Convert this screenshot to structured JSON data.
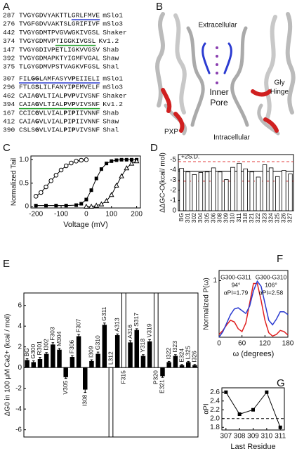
{
  "panel_labels": [
    "A",
    "B",
    "C",
    "D",
    "E",
    "F",
    "G"
  ],
  "alignment": {
    "blocks": [
      {
        "rows": [
          {
            "start": 287,
            "name": "mSlo1",
            "segments": [
              {
                "text": "TVGYGD",
                "color": "#2b3bd1"
              },
              {
                "text": "VYAKTTL"
              },
              {
                "text": "GRLFMVE",
                "underline": "#2b3bd1"
              }
            ]
          },
          {
            "start": 276,
            "name": "mSlo3",
            "segments": [
              {
                "text": "TVGFGD",
                "color": "#2b3bd1"
              },
              {
                "text": "VVAKTSLGRIFIVF"
              }
            ]
          },
          {
            "start": 442,
            "name": "Shaker",
            "segments": [
              {
                "text": "TVGYGD",
                "color": "#2b3bd1"
              },
              {
                "text": "MTPVGVWGKIVGSL"
              }
            ]
          },
          {
            "start": 374,
            "name": "Kv1.2",
            "segments": [
              {
                "text": "TVGYGD",
                "color": "#2b3bd1"
              },
              {
                "text": "MVP"
              },
              {
                "text": "TIGGKIVGSL",
                "underline": "#22a02a"
              }
            ]
          },
          {
            "start": 147,
            "name": "Shab",
            "segments": [
              {
                "text": "TVGYGD",
                "color": "#2b3bd1"
              },
              {
                "text": "IVPETLIGKVVGSV"
              }
            ]
          },
          {
            "start": 392,
            "name": "Shaw",
            "segments": [
              {
                "text": "TVGYGD",
                "color": "#2b3bd1"
              },
              {
                "text": "MAPKTYIGMFVGAL"
              }
            ]
          },
          {
            "start": 375,
            "name": "Shal",
            "segments": [
              {
                "text": "TLGYGD",
                "color": "#2b3bd1"
              },
              {
                "text": "MVPSTVAGKVFGSL"
              }
            ]
          }
        ]
      },
      {
        "rows": [
          {
            "start": 307,
            "name": "mSlo1",
            "underline": "#2b3bd1",
            "segments": [
              {
                "text": "FIL"
              },
              {
                "text": "GG",
                "color": "#e02020",
                "weight": "bold"
              },
              {
                "text": "LAMFASYV"
              },
              {
                "text": "P",
                "color": "#e02020",
                "weight": "bold"
              },
              {
                "text": "EIIELI"
              }
            ]
          },
          {
            "start": 296,
            "name": "mSlo3",
            "segments": [
              {
                "text": "FTLG"
              },
              {
                "text": "S",
                "color": "#e02020",
                "weight": "bold"
              },
              {
                "text": "LILFANYI"
              },
              {
                "text": "P",
                "color": "#e02020",
                "weight": "bold"
              },
              {
                "text": "EMVELF"
              }
            ]
          },
          {
            "start": 462,
            "name": "Shaker",
            "segments": [
              {
                "text": "CAIA"
              },
              {
                "text": "G",
                "color": "#e02020",
                "weight": "bold"
              },
              {
                "text": "VLTIAL"
              },
              {
                "text": "P",
                "color": "#e02020",
                "weight": "bold"
              },
              {
                "text": "V"
              },
              {
                "text": "P",
                "color": "#e02020",
                "weight": "bold"
              },
              {
                "text": "VIVSNF"
              }
            ]
          },
          {
            "start": 394,
            "name": "Kv1.2",
            "underline": "#22a02a",
            "segments": [
              {
                "text": "CAIA"
              },
              {
                "text": "G",
                "color": "#e02020",
                "weight": "bold"
              },
              {
                "text": "VLTIAL"
              },
              {
                "text": "P",
                "color": "#e02020",
                "weight": "bold"
              },
              {
                "text": "V"
              },
              {
                "text": "P",
                "color": "#e02020",
                "weight": "bold"
              },
              {
                "text": "VIVSNF"
              }
            ]
          },
          {
            "start": 167,
            "name": "Shab",
            "segments": [
              {
                "text": "CCIC"
              },
              {
                "text": "G",
                "color": "#e02020",
                "weight": "bold"
              },
              {
                "text": "VLVIAL"
              },
              {
                "text": "P",
                "color": "#e02020",
                "weight": "bold"
              },
              {
                "text": "I"
              },
              {
                "text": "P",
                "color": "#e02020",
                "weight": "bold"
              },
              {
                "text": "IIVNNF"
              }
            ]
          },
          {
            "start": 412,
            "name": "Shaw",
            "segments": [
              {
                "text": "CAIA"
              },
              {
                "text": "G",
                "color": "#e02020",
                "weight": "bold"
              },
              {
                "text": "VLVIAL"
              },
              {
                "text": "P",
                "color": "#e02020",
                "weight": "bold"
              },
              {
                "text": "I"
              },
              {
                "text": "P",
                "color": "#e02020",
                "weight": "bold"
              },
              {
                "text": "IIVNNF"
              }
            ]
          },
          {
            "start": 390,
            "name": "Shal",
            "segments": [
              {
                "text": "CSLS"
              },
              {
                "text": "G",
                "color": "#e02020",
                "weight": "bold"
              },
              {
                "text": "VLVIAL"
              },
              {
                "text": "P",
                "color": "#e02020",
                "weight": "bold"
              },
              {
                "text": "I"
              },
              {
                "text": "P",
                "color": "#e02020",
                "weight": "bold"
              },
              {
                "text": "VIVSNF"
              }
            ]
          }
        ]
      }
    ]
  },
  "structure": {
    "labels": [
      {
        "text": "Extracellular",
        "color": "#111"
      },
      {
        "text": "Inner",
        "color": "#111"
      },
      {
        "text": "Pore",
        "color": "#111"
      },
      {
        "text": "Gly",
        "color": "#e02020"
      },
      {
        "text": "Hinge",
        "color": "#e02020"
      },
      {
        "text": "PXP",
        "color": "#e02020"
      },
      {
        "text": "Intracellular",
        "color": "#111"
      }
    ]
  },
  "chart_data": [
    {
      "type": "scatter",
      "ylabel": "Normalized Tail",
      "xlabel": "Voltage (mV)",
      "xlim": [
        -220,
        215
      ],
      "xticks": [
        -200,
        -100,
        0,
        100,
        200
      ],
      "ylim": [
        -0.03,
        1.08
      ],
      "yticks": [
        0,
        0.5,
        {
          "value": 1,
          "label": "1.0"
        }
      ],
      "series": [
        {
          "marker": "circle-open",
          "color": "#000",
          "x": [
            -200,
            -180,
            -160,
            -140,
            -120,
            -100,
            -80,
            -60,
            -40,
            -20,
            0
          ],
          "values": [
            0.22,
            0.3,
            0.42,
            0.55,
            0.67,
            0.78,
            0.87,
            0.93,
            0.97,
            0.99,
            1.0
          ]
        },
        {
          "marker": "square",
          "color": "#000",
          "x": [
            -200,
            -160,
            -120,
            -80,
            -40,
            -20,
            0,
            20,
            40,
            60,
            80,
            100,
            120,
            140,
            160,
            180,
            200
          ],
          "values": [
            0.02,
            0.02,
            0.02,
            0.02,
            0.03,
            0.06,
            0.15,
            0.35,
            0.6,
            0.8,
            0.92,
            0.97,
            0.99,
            1.0,
            1.0,
            1.0,
            1.0
          ]
        },
        {
          "marker": "triangle-open",
          "color": "#000",
          "x": [
            0,
            20,
            40,
            60,
            80,
            100,
            120,
            140,
            160,
            180,
            200
          ],
          "values": [
            0.0,
            0.0,
            0.02,
            0.05,
            0.12,
            0.25,
            0.45,
            0.65,
            0.82,
            0.92,
            0.97
          ]
        }
      ]
    },
    {
      "type": "bar",
      "ylabel": "ΔΔGC-O(kcal/ mol)",
      "bar_fill": "#fff",
      "categories": [
        "BG",
        "301",
        "302",
        "304",
        "305",
        "306",
        "308",
        "309",
        "310",
        "311",
        "318",
        "321",
        "322",
        "323",
        "324",
        "325",
        "326",
        "327"
      ],
      "values": [
        -4.15,
        -3.8,
        -3.55,
        -3.75,
        -3.8,
        -4.2,
        -3.8,
        -3.05,
        -4.25,
        -4.65,
        -4.1,
        -3.8,
        -3.3,
        -4.5,
        -4.2,
        -3.35,
        -3.95,
        -3.6
      ],
      "ylim": [
        0,
        -5.5
      ],
      "yticks": [
        0,
        -1,
        -2,
        -3,
        -4,
        -5
      ],
      "ref_lines": [
        {
          "value": -3.85,
          "color": "#000",
          "dash": false
        },
        {
          "value": -4.8,
          "color": "#e03030",
          "dash": true,
          "label": "+2S.D."
        },
        {
          "value": -2.9,
          "color": "#e03030",
          "dash": true
        }
      ]
    },
    {
      "type": "bar",
      "ylabel": "ΔG0 in 100 μM Ca2+ (kcal / mol)",
      "bar_fill": "#000",
      "categories": [
        "BG",
        "G300",
        "R301",
        "I302",
        "F303",
        "M304",
        "V305",
        "F306",
        "F307",
        "I308",
        "I309",
        "G310",
        "G311",
        "L312",
        "A313",
        "F315",
        "A316",
        "S317",
        "Y318",
        "V319",
        "P320",
        "E321",
        "I322",
        "I323",
        "E324",
        "L325",
        "I326"
      ],
      "values": [
        0.7,
        0.5,
        0.8,
        1.3,
        2.2,
        1.7,
        -0.9,
        1.0,
        3.0,
        -2.1,
        0.6,
        1.3,
        4.1,
        null,
        3.1,
        null,
        2.4,
        3.6,
        1.1,
        2.5,
        null,
        -0.8,
        0.5,
        1.1,
        0.2,
        0.5,
        0.2
      ],
      "errors": [
        0.15,
        0.15,
        0.2,
        0.15,
        0.2,
        0.15,
        0.15,
        0.15,
        0.2,
        0.3,
        0.15,
        0.2,
        0.2,
        null,
        0.15,
        null,
        0.2,
        0.15,
        0.15,
        0.2,
        null,
        0.15,
        0.1,
        0.15,
        0.1,
        0.1,
        0.1
      ],
      "open": [
        null,
        null,
        null,
        null,
        null,
        null,
        null,
        null,
        null,
        null,
        null,
        null,
        null,
        "down",
        null,
        "up",
        null,
        null,
        null,
        null,
        "up",
        null,
        null,
        null,
        null,
        null,
        null
      ],
      "ylim": [
        -6.7,
        7.2
      ],
      "yticks": [
        -6,
        -4,
        -2,
        0,
        2,
        4,
        6
      ]
    },
    {
      "type": "line",
      "ylabel": "Normalized P(ω)",
      "xlabel": "ω (degrees)",
      "xlim": [
        0,
        180
      ],
      "xticks": [
        0,
        60,
        120,
        180
      ],
      "ylim": [
        0,
        1.18
      ],
      "yticks": [
        1
      ],
      "series": [
        {
          "name": "G300-G311",
          "color": "#e02020",
          "notes": [
            "94°",
            "αPI=1.79"
          ],
          "x": [
            0,
            10,
            20,
            30,
            40,
            50,
            60,
            70,
            80,
            90,
            100,
            110,
            120,
            130,
            140,
            150,
            160,
            170,
            180
          ],
          "values": [
            0.05,
            0.12,
            0.22,
            0.3,
            0.27,
            0.15,
            0.1,
            0.25,
            0.6,
            0.95,
            0.95,
            0.65,
            0.3,
            0.08,
            0.02,
            0.05,
            0.12,
            0.1,
            0.04
          ]
        },
        {
          "name": "G300-G310",
          "color": "#2b3bd1",
          "notes": [
            "106°",
            "αPI=2.58"
          ],
          "x": [
            0,
            10,
            20,
            30,
            40,
            50,
            60,
            70,
            80,
            90,
            100,
            110,
            120,
            130,
            140,
            150,
            160,
            170,
            180
          ],
          "values": [
            0.0,
            0.1,
            0.25,
            0.4,
            0.5,
            0.52,
            0.47,
            0.42,
            0.55,
            0.82,
            0.99,
            0.9,
            0.6,
            0.3,
            0.22,
            0.32,
            0.45,
            0.45,
            0.4
          ]
        }
      ]
    },
    {
      "type": "line",
      "ylabel": "αPI",
      "xlabel": "Last Residue",
      "xlim": [
        306.7,
        311.3
      ],
      "xticks": [
        307,
        308,
        309,
        310,
        311
      ],
      "ylim": [
        1.74,
        2.7
      ],
      "yticks": [
        1.8,
        {
          "value": 2,
          "label": "2.0"
        },
        2.2,
        2.4,
        2.6
      ],
      "series": [
        {
          "color": "#000",
          "marker": "square",
          "x": [
            307,
            308,
            309,
            310,
            311
          ],
          "values": [
            2.6,
            2.1,
            2.2,
            2.6,
            1.8
          ]
        }
      ],
      "ref_lines": [
        {
          "value": 2,
          "color": "#000",
          "dash": true
        }
      ]
    }
  ]
}
